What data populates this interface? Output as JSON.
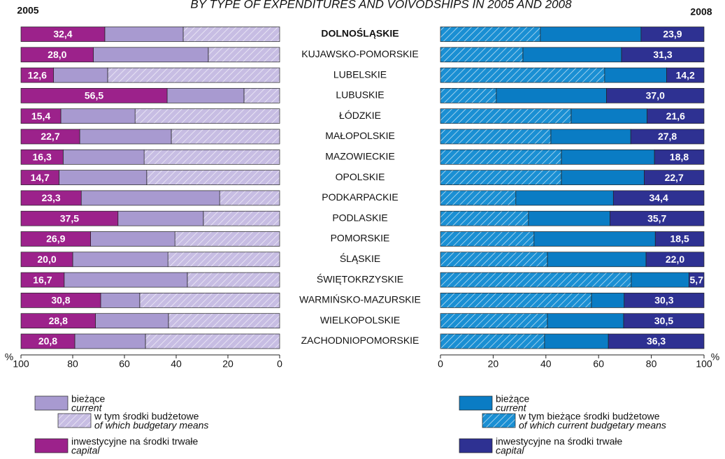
{
  "title": "BY TYPE OF EXPENDITURES AND VOIVODSHIPS IN 2005 AND 2008",
  "chart_data": [
    {
      "type": "bar",
      "title": "2005",
      "x_label": "%",
      "categories": [
        "DOLNOŚLĄSKIE",
        "KUJAWSKO-POMORSKIE",
        "LUBELSKIE",
        "LUBUSKIE",
        "ŁÓDZKIE",
        "MAŁOPOLSKIE",
        "MAZOWIECKIE",
        "OPOLSKIE",
        "PODKARPACKIE",
        "PODLASKIE",
        "POMORSKIE",
        "ŚLĄSKIE",
        "ŚWIĘTOKRZYSKIE",
        "WARMIŃSKO-MAZURSKIE",
        "WIELKOPOLSKIE",
        "ZACHODNIOPOMORSKIE"
      ],
      "xlim": [
        100,
        0
      ],
      "xticks": [
        100,
        80,
        60,
        40,
        20,
        0
      ],
      "series": [
        {
          "name": "w tym środki budżetowe",
          "name_en": "of which budgetary means",
          "color": "#c7bde3",
          "hatch": true,
          "values": [
            37.3,
            27.6,
            66.5,
            13.8,
            55.9,
            41.9,
            52.4,
            51.4,
            23.2,
            29.5,
            40.5,
            43.2,
            35.7,
            54.1,
            43.0,
            51.9
          ]
        },
        {
          "name": "bieżące",
          "name_en": "current",
          "color": "#a89ad0",
          "hatch": false,
          "values": [
            30.3,
            44.4,
            20.9,
            29.7,
            28.7,
            35.4,
            31.3,
            33.9,
            53.5,
            33.0,
            32.6,
            36.8,
            47.6,
            15.1,
            28.2,
            27.3
          ]
        },
        {
          "name": "inwestycyjne na środki trwałe",
          "name_en": "capital",
          "color": "#9c228b",
          "hatch": false,
          "values": [
            32.4,
            28.0,
            12.6,
            56.5,
            15.4,
            22.7,
            16.3,
            14.7,
            23.3,
            37.5,
            26.9,
            20.0,
            16.7,
            30.8,
            28.8,
            20.8
          ],
          "value_labels": [
            "32,4",
            "28,0",
            "12,6",
            "56,5",
            "15,4",
            "22,7",
            "16,3",
            "14,7",
            "23,3",
            "37,5",
            "26,9",
            "20,0",
            "16,7",
            "30,8",
            "28,8",
            "20,8"
          ]
        }
      ]
    },
    {
      "type": "bar",
      "title": "2008",
      "x_label": "%",
      "xlim": [
        0,
        100
      ],
      "xticks": [
        0,
        20,
        40,
        60,
        80,
        100
      ],
      "series": [
        {
          "name": "w tym bieżące środki budżetowe",
          "name_en": "of which current budgetary means",
          "color": "#1a8fd3",
          "hatch": true,
          "values": [
            37.9,
            31.3,
            62.3,
            21.2,
            49.6,
            41.9,
            45.9,
            45.9,
            28.6,
            33.4,
            35.5,
            40.6,
            72.4,
            57.3,
            40.6,
            39.5
          ]
        },
        {
          "name": "bieżące",
          "name_en": "current",
          "color": "#0a7cc4",
          "hatch": false,
          "values": [
            38.2,
            37.4,
            23.5,
            41.8,
            28.8,
            30.3,
            35.3,
            31.4,
            37.0,
            30.9,
            46.0,
            37.4,
            21.9,
            12.4,
            28.9,
            24.2
          ]
        },
        {
          "name": "inwestycyjne na środki trwałe",
          "name_en": "capital",
          "color": "#2e3192",
          "hatch": false,
          "values": [
            23.9,
            31.3,
            14.2,
            37.0,
            21.6,
            27.8,
            18.8,
            22.7,
            34.4,
            35.7,
            18.5,
            22.0,
            5.7,
            30.3,
            30.5,
            36.3
          ],
          "value_labels": [
            "23,9",
            "31,3",
            "14,2",
            "37,0",
            "21,6",
            "27,8",
            "18,8",
            "22,7",
            "34,4",
            "35,7",
            "18,5",
            "22,0",
            "5,7",
            "30,3",
            "30,5",
            "36,3"
          ]
        }
      ]
    }
  ]
}
